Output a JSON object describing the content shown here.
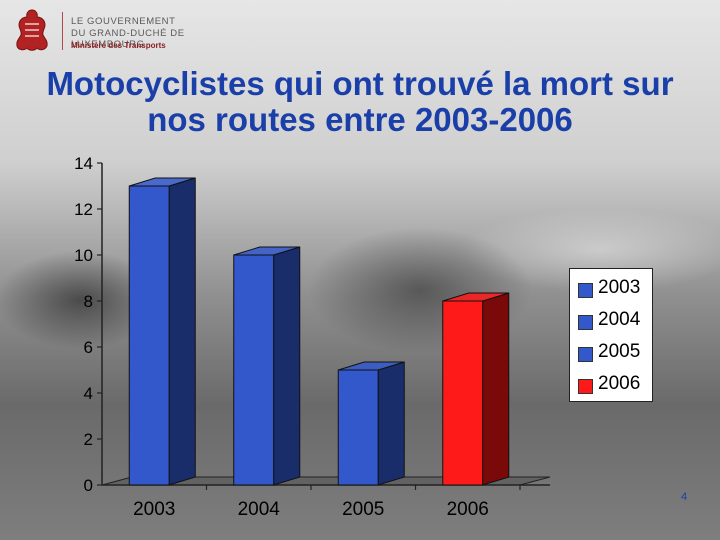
{
  "logo": {
    "line1": "Le Gouvernement",
    "line2": "du Grand-Duché de Luxembourg",
    "line3": "Ministère des Transports"
  },
  "page_number": "4",
  "chart_data": {
    "type": "bar",
    "title": "Motocyclistes qui ont trouvé la mort sur nos routes entre 2003-2006",
    "categories": [
      "2003",
      "2004",
      "2005",
      "2006"
    ],
    "values": [
      13,
      10,
      5,
      8
    ],
    "colors": [
      "#3358cc",
      "#3358cc",
      "#3358cc",
      "#ff1a1a"
    ],
    "side_colors": [
      "#1a2d6b",
      "#1a2d6b",
      "#1a2d6b",
      "#7a0a0a"
    ],
    "ylim": [
      0,
      14
    ],
    "yticks": [
      0,
      2,
      4,
      6,
      8,
      10,
      12,
      14
    ],
    "xlabel": "",
    "ylabel": "",
    "grid": false,
    "legend": {
      "placement": "right",
      "entries": [
        {
          "label": "2003",
          "color": "#3358cc"
        },
        {
          "label": "2004",
          "color": "#3358cc"
        },
        {
          "label": "2005",
          "color": "#3358cc"
        },
        {
          "label": "2006",
          "color": "#ff1a1a"
        }
      ]
    }
  }
}
